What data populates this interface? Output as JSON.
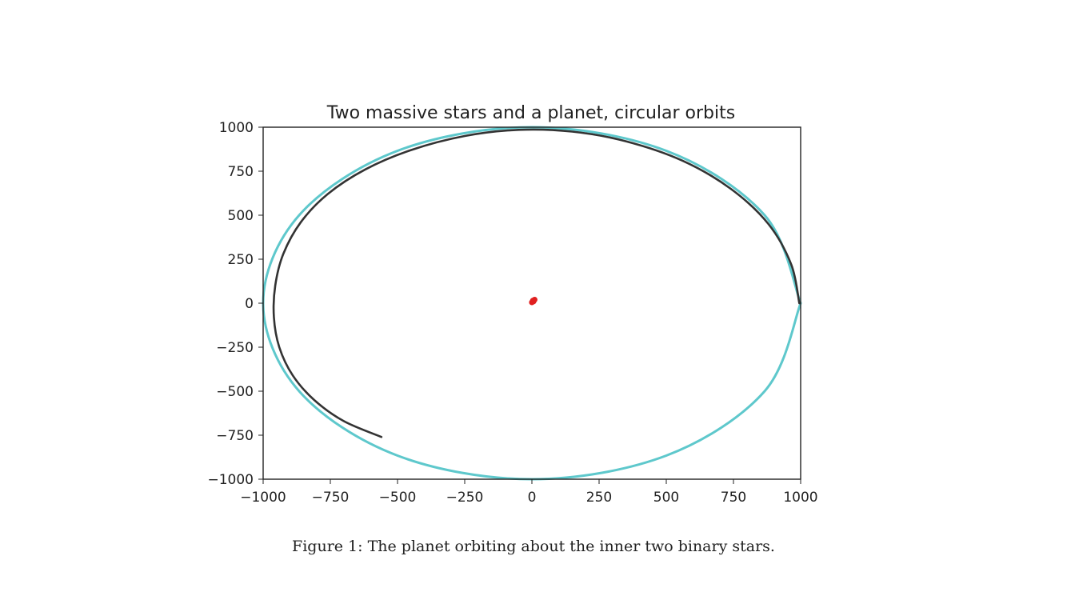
{
  "caption": "Figure 1: The planet orbiting about the inner two binary stars.",
  "chart_data": {
    "type": "line",
    "title": "Two massive stars and a planet, circular orbits",
    "xlabel": "",
    "ylabel": "",
    "xlim": [
      -1000,
      1000
    ],
    "ylim": [
      -1000,
      1000
    ],
    "xticks": [
      -1000,
      -750,
      -500,
      -250,
      0,
      250,
      500,
      750,
      1000
    ],
    "yticks": [
      -1000,
      -750,
      -500,
      -250,
      0,
      250,
      500,
      750,
      1000
    ],
    "xtick_labels": [
      "−1000",
      "−750",
      "−500",
      "−250",
      "0",
      "250",
      "500",
      "750",
      "1000"
    ],
    "ytick_labels": [
      "−1000",
      "−750",
      "−500",
      "−250",
      "0",
      "250",
      "500",
      "750",
      "1000"
    ],
    "grid": false,
    "series": [
      {
        "color": "#5ec8cc",
        "x": [
          1000,
          866,
          500,
          0,
          -500,
          -866,
          -1000,
          -866,
          -500,
          0,
          500,
          866,
          1000
        ],
        "y": [
          0,
          500,
          866,
          1000,
          866,
          500,
          0,
          -500,
          -866,
          -1000,
          -866,
          -500,
          0
        ]
      },
      {
        "color": "#333333",
        "x": [
          995,
          965,
          880,
          740,
          560,
          350,
          150,
          -50,
          -250,
          -450,
          -620,
          -760,
          -860,
          -925,
          -955,
          -960,
          -940,
          -890,
          -810,
          -700,
          -560
        ],
        "y": [
          0,
          220,
          450,
          650,
          810,
          920,
          975,
          985,
          950,
          870,
          760,
          620,
          460,
          280,
          100,
          -80,
          -250,
          -410,
          -550,
          -670,
          -760
        ]
      },
      {
        "color": "#e02020",
        "marker": "dot",
        "x": [
          0,
          4,
          10,
          6
        ],
        "y": [
          5,
          15,
          20,
          10
        ]
      }
    ]
  }
}
